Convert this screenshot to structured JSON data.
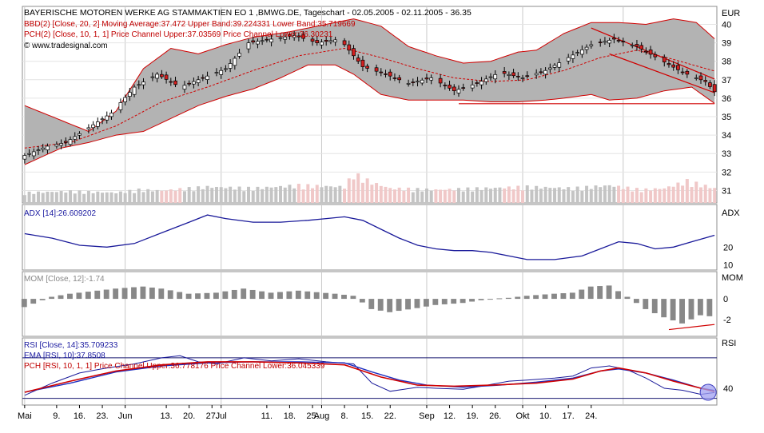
{
  "colors": {
    "background": "#ffffff",
    "band_fill": "#b3b3b3",
    "band_line": "#d00000",
    "up_candle": "#ffffff",
    "down_candle": "#d42020",
    "wick": "#000000",
    "volume_bar": "#c4c4c4",
    "volume_down_bar": "#f0c8c8",
    "indicator_line": "#1a1a9a",
    "rsi_ema_line": "#2030c0",
    "pch_line": "#d00000",
    "mom_bar": "#888888",
    "header_text": "#000000",
    "info_red": "#c00000",
    "info_blue": "#1a1aa0",
    "grid": "#c9c9c9",
    "support_line": "#d00000"
  },
  "chart_data": {
    "type": "candlestick",
    "title": "BAYERISCHE MOTOREN WERKE AG STAMMAKTIEN EO 1 ,BMWG.DE, Tageschart - 02.05.2005 - 02.11.2005 - 36.35",
    "currency": "EUR",
    "source": "© www.tradesignal.com",
    "date_range": [
      "02.05.2005",
      "02.11.2005"
    ],
    "last_price": 36.35,
    "x_ticks": [
      "Mai",
      "9.",
      "16.",
      "23.",
      "Jun",
      "13.",
      "20.",
      "27.",
      "Jul",
      "11.",
      "18.",
      "25.",
      "Aug",
      "8.",
      "15.",
      "22.",
      "Sep",
      "12.",
      "19.",
      "26.",
      "Okt",
      "10.",
      "17.",
      "24."
    ],
    "price_panel": {
      "y_ticks": [
        31,
        32,
        33,
        34,
        35,
        36,
        37,
        38,
        39,
        40
      ],
      "ylim": [
        30.5,
        40.8
      ],
      "legend": [
        "BBD(2) [Close, 20, 2] Moving Average:37.472 Upper Band:39.224331 Lower Band:35.719669",
        "PCH(2) [Close, 10, 1, 1] Price Channel Upper:37.03569 Price Channel Lower:36.30231"
      ],
      "close_points": [
        [
          0,
          32.9
        ],
        [
          5,
          33.4
        ],
        [
          9,
          33.6
        ],
        [
          14,
          34.4
        ],
        [
          19,
          35.2
        ],
        [
          24,
          36.6
        ],
        [
          29,
          37.3
        ],
        [
          34,
          36.6
        ],
        [
          39,
          37.1
        ],
        [
          44,
          37.6
        ],
        [
          49,
          39.0
        ],
        [
          54,
          39.2
        ],
        [
          59,
          39.4
        ],
        [
          64,
          39.0
        ],
        [
          69,
          39.2
        ],
        [
          74,
          37.7
        ],
        [
          79,
          37.3
        ],
        [
          84,
          36.8
        ],
        [
          89,
          37.1
        ],
        [
          94,
          36.4
        ],
        [
          99,
          36.8
        ],
        [
          104,
          37.4
        ],
        [
          109,
          37.1
        ],
        [
          114,
          37.5
        ],
        [
          119,
          38.2
        ],
        [
          124,
          38.9
        ],
        [
          129,
          39.2
        ],
        [
          134,
          38.8
        ],
        [
          139,
          38.1
        ],
        [
          144,
          37.4
        ],
        [
          149,
          36.9
        ],
        [
          151,
          36.35
        ]
      ],
      "bollinger": {
        "middle": [
          [
            0,
            33.3
          ],
          [
            10,
            33.6
          ],
          [
            20,
            34.5
          ],
          [
            30,
            35.8
          ],
          [
            40,
            36.6
          ],
          [
            50,
            37.5
          ],
          [
            60,
            38.3
          ],
          [
            70,
            38.7
          ],
          [
            78,
            38.2
          ],
          [
            86,
            37.6
          ],
          [
            94,
            37.1
          ],
          [
            102,
            36.9
          ],
          [
            110,
            37.0
          ],
          [
            118,
            37.5
          ],
          [
            126,
            38.2
          ],
          [
            134,
            38.6
          ],
          [
            142,
            38.1
          ],
          [
            151,
            37.47
          ]
        ],
        "upper": [
          [
            0,
            35.6
          ],
          [
            8,
            34.8
          ],
          [
            14,
            34.2
          ],
          [
            20,
            35.3
          ],
          [
            26,
            37.6
          ],
          [
            32,
            38.7
          ],
          [
            38,
            38.4
          ],
          [
            44,
            38.9
          ],
          [
            50,
            39.3
          ],
          [
            58,
            39.6
          ],
          [
            66,
            40.0
          ],
          [
            72,
            40.3
          ],
          [
            78,
            39.9
          ],
          [
            84,
            38.8
          ],
          [
            90,
            38.3
          ],
          [
            96,
            37.9
          ],
          [
            102,
            38.0
          ],
          [
            108,
            38.5
          ],
          [
            112,
            38.6
          ],
          [
            118,
            39.5
          ],
          [
            124,
            40.1
          ],
          [
            130,
            40.1
          ],
          [
            136,
            40.0
          ],
          [
            142,
            40.3
          ],
          [
            147,
            40.1
          ],
          [
            151,
            39.22
          ]
        ],
        "lower": [
          [
            0,
            32.4
          ],
          [
            8,
            33.3
          ],
          [
            14,
            33.6
          ],
          [
            20,
            34.0
          ],
          [
            26,
            34.2
          ],
          [
            32,
            34.9
          ],
          [
            38,
            35.6
          ],
          [
            44,
            36.1
          ],
          [
            50,
            36.5
          ],
          [
            56,
            37.1
          ],
          [
            62,
            37.8
          ],
          [
            68,
            37.8
          ],
          [
            72,
            37.3
          ],
          [
            78,
            36.2
          ],
          [
            84,
            35.9
          ],
          [
            90,
            35.9
          ],
          [
            96,
            35.9
          ],
          [
            102,
            35.8
          ],
          [
            108,
            35.8
          ],
          [
            114,
            35.9
          ],
          [
            118,
            36.0
          ],
          [
            124,
            36.2
          ],
          [
            128,
            35.9
          ],
          [
            134,
            36.0
          ],
          [
            140,
            36.4
          ],
          [
            146,
            36.6
          ],
          [
            151,
            35.72
          ]
        ]
      },
      "price_channel": {
        "upper": [
          [
            124,
            39.8
          ],
          [
            151,
            37.04
          ]
        ],
        "lower": [
          [
            128,
            38.4
          ],
          [
            151,
            36.3
          ]
        ]
      },
      "support_line": [
        [
          95,
          35.7
        ],
        [
          151,
          35.7
        ]
      ],
      "volume_points": [
        [
          0,
          0.35
        ],
        [
          10,
          0.4
        ],
        [
          20,
          0.35
        ],
        [
          25,
          0.45
        ],
        [
          30,
          0.42
        ],
        [
          40,
          0.55
        ],
        [
          50,
          0.5
        ],
        [
          60,
          0.6
        ],
        [
          70,
          0.55
        ],
        [
          72,
          1.0
        ],
        [
          76,
          0.7
        ],
        [
          80,
          0.5
        ],
        [
          90,
          0.45
        ],
        [
          100,
          0.5
        ],
        [
          110,
          0.55
        ],
        [
          120,
          0.5
        ],
        [
          128,
          0.6
        ],
        [
          135,
          0.45
        ],
        [
          140,
          0.5
        ],
        [
          145,
          0.75
        ],
        [
          151,
          0.5
        ]
      ]
    },
    "adx_panel": {
      "legend": "ADX [14]:26.609202",
      "y_ticks": [
        10,
        20
      ],
      "ylim": [
        8,
        43
      ],
      "label": "ADX",
      "values": [
        [
          0,
          27.5
        ],
        [
          6,
          25.0
        ],
        [
          12,
          21.0
        ],
        [
          18,
          20.0
        ],
        [
          24,
          22.0
        ],
        [
          30,
          28.0
        ],
        [
          36,
          34.0
        ],
        [
          40,
          38.0
        ],
        [
          44,
          36.0
        ],
        [
          50,
          34.0
        ],
        [
          56,
          34.0
        ],
        [
          62,
          35.0
        ],
        [
          66,
          36.0
        ],
        [
          70,
          37.0
        ],
        [
          74,
          35.0
        ],
        [
          78,
          30.0
        ],
        [
          82,
          25.0
        ],
        [
          86,
          21.0
        ],
        [
          90,
          19.0
        ],
        [
          94,
          18.0
        ],
        [
          98,
          18.0
        ],
        [
          102,
          17.0
        ],
        [
          106,
          15.0
        ],
        [
          110,
          13.0
        ],
        [
          116,
          13.0
        ],
        [
          122,
          15.0
        ],
        [
          126,
          19.0
        ],
        [
          130,
          23.0
        ],
        [
          134,
          22.0
        ],
        [
          138,
          19.0
        ],
        [
          142,
          20.0
        ],
        [
          146,
          23.0
        ],
        [
          151,
          26.6
        ]
      ]
    },
    "mom_panel": {
      "legend": "MOM [Close, 12]:-1.74",
      "y_ticks": [
        0,
        -2
      ],
      "ylim": [
        -3.5,
        2.5
      ],
      "label": "MOM",
      "values": [
        [
          0,
          -0.8
        ],
        [
          6,
          0.2
        ],
        [
          10,
          0.5
        ],
        [
          20,
          1.0
        ],
        [
          26,
          1.2
        ],
        [
          30,
          1.0
        ],
        [
          36,
          0.5
        ],
        [
          42,
          0.6
        ],
        [
          48,
          1.0
        ],
        [
          54,
          0.6
        ],
        [
          60,
          0.8
        ],
        [
          68,
          0.5
        ],
        [
          72,
          0.3
        ],
        [
          76,
          -1.0
        ],
        [
          80,
          -1.3
        ],
        [
          86,
          -0.9
        ],
        [
          90,
          -0.6
        ],
        [
          96,
          -0.4
        ],
        [
          102,
          0.0
        ],
        [
          106,
          0.1
        ],
        [
          110,
          0.3
        ],
        [
          116,
          0.5
        ],
        [
          120,
          0.6
        ],
        [
          124,
          1.2
        ],
        [
          128,
          1.3
        ],
        [
          132,
          0.2
        ],
        [
          136,
          -1.0
        ],
        [
          140,
          -1.8
        ],
        [
          144,
          -2.4
        ],
        [
          148,
          -1.6
        ],
        [
          151,
          -1.74
        ]
      ]
    },
    "rsi_panel": {
      "legends": [
        "RSI [Close, 14]:35.709233",
        "EMA [RSI, 10]:37.8508",
        "PCH [RSI, 10, 1, 1] Price Channel Upper:36.778176 Price Channel Lower:36.045339"
      ],
      "y_ticks": [
        40
      ],
      "ylim": [
        25,
        88
      ],
      "label": "RSI",
      "rsi": [
        [
          0,
          33.0
        ],
        [
          6,
          45.0
        ],
        [
          12,
          55.0
        ],
        [
          18,
          60.0
        ],
        [
          24,
          64.0
        ],
        [
          30,
          70.0
        ],
        [
          34,
          72.0
        ],
        [
          38,
          66.0
        ],
        [
          42,
          64.0
        ],
        [
          48,
          70.0
        ],
        [
          54,
          67.0
        ],
        [
          60,
          69.0
        ],
        [
          66,
          66.0
        ],
        [
          72,
          64.0
        ],
        [
          76,
          45.0
        ],
        [
          80,
          37.0
        ],
        [
          86,
          41.0
        ],
        [
          90,
          40.0
        ],
        [
          96,
          39.0
        ],
        [
          100,
          42.0
        ],
        [
          106,
          47.0
        ],
        [
          110,
          48.0
        ],
        [
          116,
          50.0
        ],
        [
          120,
          52.0
        ],
        [
          124,
          60.0
        ],
        [
          128,
          62.0
        ],
        [
          132,
          58.0
        ],
        [
          136,
          50.0
        ],
        [
          140,
          40.0
        ],
        [
          144,
          38.0
        ],
        [
          148,
          34.0
        ],
        [
          151,
          35.7
        ]
      ],
      "ema": [
        [
          0,
          36.0
        ],
        [
          10,
          45.0
        ],
        [
          20,
          56.0
        ],
        [
          30,
          62.0
        ],
        [
          40,
          65.0
        ],
        [
          50,
          66.0
        ],
        [
          60,
          66.0
        ],
        [
          70,
          65.0
        ],
        [
          76,
          56.0
        ],
        [
          82,
          48.0
        ],
        [
          88,
          43.0
        ],
        [
          96,
          41.0
        ],
        [
          104,
          43.0
        ],
        [
          112,
          46.0
        ],
        [
          120,
          50.0
        ],
        [
          126,
          57.0
        ],
        [
          130,
          59.0
        ],
        [
          136,
          55.0
        ],
        [
          142,
          48.0
        ],
        [
          148,
          40.0
        ],
        [
          151,
          37.85
        ]
      ],
      "pch": [
        [
          0,
          36.0
        ],
        [
          10,
          47.0
        ],
        [
          20,
          57.0
        ],
        [
          30,
          63.0
        ],
        [
          40,
          66.0
        ],
        [
          50,
          66.0
        ],
        [
          60,
          65.0
        ],
        [
          70,
          63.0
        ],
        [
          78,
          51.0
        ],
        [
          86,
          43.0
        ],
        [
          94,
          42.0
        ],
        [
          102,
          43.0
        ],
        [
          112,
          45.0
        ],
        [
          120,
          49.0
        ],
        [
          126,
          57.0
        ],
        [
          130,
          60.0
        ],
        [
          136,
          55.0
        ],
        [
          142,
          47.0
        ],
        [
          148,
          40.0
        ],
        [
          151,
          36.78
        ]
      ],
      "upper_level": 70,
      "lower_level": 30
    }
  }
}
